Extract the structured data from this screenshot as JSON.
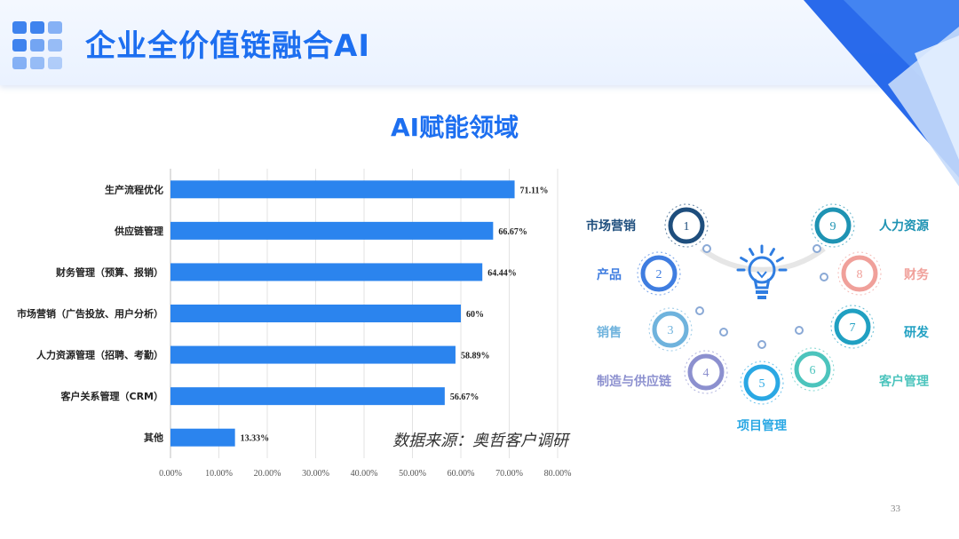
{
  "header": {
    "title": "企业全价值链融合AI"
  },
  "chart_data": {
    "type": "bar",
    "orientation": "horizontal",
    "title": "AI赋能领域",
    "categories": [
      "生产流程优化",
      "供应链管理",
      "财务管理（预算、报销）",
      "市场营销（广告投放、用户分析）",
      "人力资源管理（招聘、考勤）",
      "客户关系管理（CRM）",
      "其他"
    ],
    "values": [
      71.11,
      66.67,
      64.44,
      60,
      58.89,
      56.67,
      13.33
    ],
    "value_labels": [
      "71.11%",
      "66.67%",
      "64.44%",
      "60%",
      "58.89%",
      "56.67%",
      "13.33%"
    ],
    "xlim": [
      0,
      80
    ],
    "x_ticks": [
      "0.00%",
      "10.00%",
      "20.00%",
      "30.00%",
      "40.00%",
      "50.00%",
      "60.00%",
      "70.00%",
      "80.00%"
    ],
    "grid": true,
    "bar_color": "#2b84ee"
  },
  "source": "数据来源：奥哲客户调研",
  "diagram": {
    "nodes": [
      {
        "number": "1",
        "label": "市场营销",
        "color": "#1e4e7d"
      },
      {
        "number": "2",
        "label": "产品",
        "color": "#3f7de0"
      },
      {
        "number": "3",
        "label": "销售",
        "color": "#6fb3dd"
      },
      {
        "number": "4",
        "label": "制造与供应链",
        "color": "#8c90cf"
      },
      {
        "number": "5",
        "label": "项目管理",
        "color": "#2aa8e4"
      },
      {
        "number": "6",
        "label": "客户管理",
        "color": "#4cc4bd"
      },
      {
        "number": "7",
        "label": "研发",
        "color": "#20a0c2"
      },
      {
        "number": "8",
        "label": "财务",
        "color": "#f0a09a"
      },
      {
        "number": "9",
        "label": "人力资源",
        "color": "#1e93b3"
      }
    ],
    "center_icon": "lightbulb-icon",
    "center_color": "#2f7de1"
  },
  "page_number": "33"
}
